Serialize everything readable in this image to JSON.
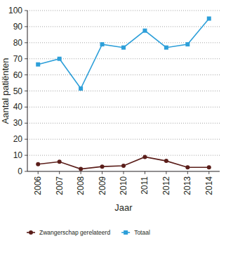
{
  "chart_data": {
    "type": "line",
    "x_label": "Jaar",
    "y_label": "Aantal patiënten",
    "categories": [
      "2006",
      "2007",
      "2008",
      "2009",
      "2010",
      "2011",
      "2012",
      "2013",
      "2014"
    ],
    "series": [
      {
        "name": "Zwangerschap gerelateerd",
        "color": "#5b1e1a",
        "marker": "circle",
        "values": [
          4.5,
          6,
          1.5,
          3,
          3.5,
          9,
          6.5,
          2.5,
          2.5
        ]
      },
      {
        "name": "Totaal",
        "color": "#2d9fd9",
        "marker": "square",
        "values": [
          66.5,
          70,
          51.5,
          79,
          77,
          87.5,
          77,
          79,
          95
        ]
      }
    ],
    "ylim": [
      0,
      100
    ],
    "yticks": [
      0,
      10,
      20,
      30,
      40,
      50,
      60,
      70,
      80,
      90,
      100
    ],
    "grid": true,
    "legend": "bottom"
  }
}
